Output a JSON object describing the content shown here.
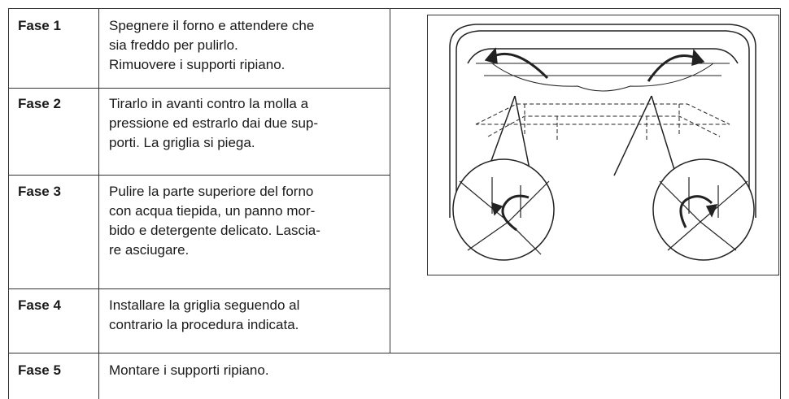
{
  "steps": [
    {
      "label": "Fase 1",
      "lines": [
        "Spegnere il forno e attendere che",
        "sia freddo per pulirlo.",
        "Rimuovere i supporti ripiano."
      ]
    },
    {
      "label": "Fase 2",
      "lines": [
        "Tirarlo in avanti contro la molla a",
        "pressione ed estrarlo dai due sup-",
        "porti. La griglia si piega."
      ]
    },
    {
      "label": "Fase 3",
      "lines": [
        "Pulire la parte superiore del forno",
        "con acqua tiepida, un panno mor-",
        "bido e detergente delicato. Lascia-",
        "re asciugare."
      ]
    },
    {
      "label": "Fase 4",
      "lines": [
        "Installare la griglia seguendo al",
        "contrario la procedura indicata."
      ]
    },
    {
      "label": "Fase 5",
      "lines": [
        "Montare i supporti ripiano."
      ]
    }
  ]
}
